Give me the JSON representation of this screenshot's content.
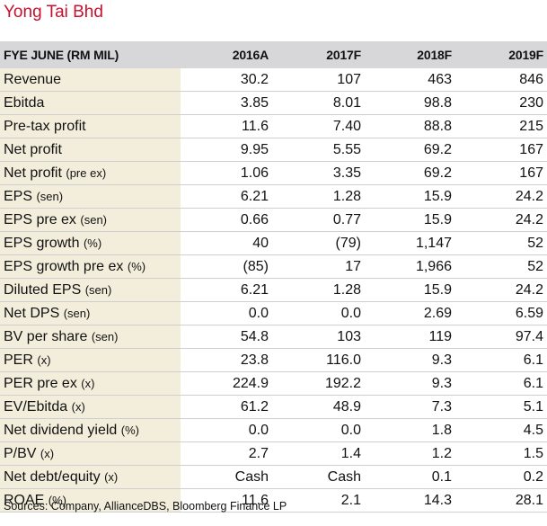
{
  "title": "Yong Tai Bhd",
  "header": [
    "FYE JUNE (RM MIL)",
    "2016A",
    "2017F",
    "2018F",
    "2019F"
  ],
  "rows": [
    {
      "label": "Revenue",
      "unit": "",
      "values": [
        "30.2",
        "107",
        "463",
        "846"
      ]
    },
    {
      "label": "Ebitda",
      "unit": "",
      "values": [
        "3.85",
        "8.01",
        "98.8",
        "230"
      ]
    },
    {
      "label": "Pre-tax profit",
      "unit": "",
      "values": [
        "11.6",
        "7.40",
        "88.8",
        "215"
      ]
    },
    {
      "label": "Net profit",
      "unit": "",
      "values": [
        "9.95",
        "5.55",
        "69.2",
        "167"
      ]
    },
    {
      "label": "Net profit",
      "unit": "(pre ex)",
      "values": [
        "1.06",
        "3.35",
        "69.2",
        "167"
      ]
    },
    {
      "label": "EPS",
      "unit": "(sen)",
      "values": [
        "6.21",
        "1.28",
        "15.9",
        "24.2"
      ]
    },
    {
      "label": "EPS pre ex",
      "unit": "(sen)",
      "values": [
        "0.66",
        "0.77",
        "15.9",
        "24.2"
      ]
    },
    {
      "label": "EPS growth",
      "unit": "(%)",
      "values": [
        "40",
        "(79)",
        "1,147",
        "52"
      ]
    },
    {
      "label": "EPS growth pre ex",
      "unit": "(%)",
      "values": [
        "(85)",
        "17",
        "1,966",
        "52"
      ]
    },
    {
      "label": "Diluted EPS",
      "unit": "(sen)",
      "values": [
        "6.21",
        "1.28",
        "15.9",
        "24.2"
      ]
    },
    {
      "label": "Net DPS",
      "unit": "(sen)",
      "values": [
        "0.0",
        "0.0",
        "2.69",
        "6.59"
      ]
    },
    {
      "label": "BV per share",
      "unit": "(sen)",
      "values": [
        "54.8",
        "103",
        "119",
        "97.4"
      ]
    },
    {
      "label": "PER",
      "unit": "(x)",
      "values": [
        "23.8",
        "116.0",
        "9.3",
        "6.1"
      ]
    },
    {
      "label": "PER pre ex",
      "unit": "(x)",
      "values": [
        "224.9",
        "192.2",
        "9.3",
        "6.1"
      ]
    },
    {
      "label": "EV/Ebitda",
      "unit": "(x)",
      "values": [
        "61.2",
        "48.9",
        "7.3",
        "5.1"
      ]
    },
    {
      "label": "Net dividend yield",
      "unit": "(%)",
      "values": [
        "0.0",
        "0.0",
        "1.8",
        "4.5"
      ]
    },
    {
      "label": "P/BV",
      "unit": "(x)",
      "values": [
        "2.7",
        "1.4",
        "1.2",
        "1.5"
      ]
    },
    {
      "label": "Net debt/equity",
      "unit": "(x)",
      "values": [
        "Cash",
        "Cash",
        "0.1",
        "0.2"
      ]
    },
    {
      "label": "ROAE",
      "unit": "(%)",
      "values": [
        "11.6",
        "2.1",
        "14.3",
        "28.1"
      ]
    }
  ],
  "source": "Sources: Company, AllianceDBS, Bloomberg Finance LP",
  "colors": {
    "title": "#c8102e",
    "header_bg": "#d7d7d9",
    "label_bg": "#f3eedc"
  }
}
